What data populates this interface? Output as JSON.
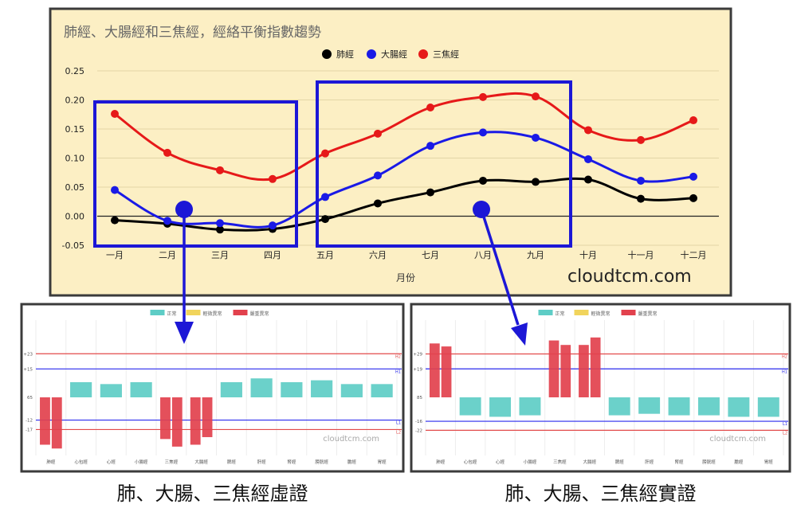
{
  "watermark": "cloudtcm.com",
  "captions": {
    "left": "肺、大腸、三焦經虛證",
    "right": "肺、大腸、三焦經實證"
  },
  "colors": {
    "main_bg": "#fcefc4",
    "frame": "#3b3b3b",
    "callout": "#1c17d6",
    "normal": "#5ecdc6",
    "mild": "#f1d45c",
    "severe": "#e2414d",
    "red_line": "#e24a4a",
    "blue_line": "#2a2aee"
  },
  "chart_data": [
    {
      "type": "line",
      "title": "肺經、大腸經和三焦經，經絡平衡指數趨勢",
      "xlabel": "月份",
      "ylabel": "",
      "categories": [
        "一月",
        "二月",
        "三月",
        "四月",
        "五月",
        "六月",
        "七月",
        "八月",
        "九月",
        "十月",
        "十一月",
        "十二月"
      ],
      "ylim": [
        -0.05,
        0.25
      ],
      "yticks": [
        "0.25",
        "0.20",
        "0.15",
        "0.10",
        "0.05",
        "0.00",
        "-0.05"
      ],
      "legend_position": "top-center",
      "series": [
        {
          "name": "肺經",
          "color": "#000000",
          "values": [
            -0.007,
            -0.013,
            -0.023,
            -0.022,
            -0.005,
            0.022,
            0.041,
            0.061,
            0.059,
            0.063,
            0.03,
            0.031
          ]
        },
        {
          "name": "大腸經",
          "color": "#1a1ae6",
          "values": [
            0.045,
            -0.008,
            -0.012,
            -0.016,
            0.033,
            0.07,
            0.121,
            0.144,
            0.135,
            0.098,
            0.061,
            0.068
          ]
        },
        {
          "name": "三焦經",
          "color": "#e61919",
          "values": [
            0.176,
            0.109,
            0.079,
            0.064,
            0.108,
            0.142,
            0.187,
            0.205,
            0.206,
            0.148,
            0.131,
            0.165
          ]
        }
      ]
    },
    {
      "type": "bar",
      "legend": [
        "正常",
        "輕微異常",
        "嚴重異常"
      ],
      "categories": [
        "肺經",
        "心包經",
        "心經",
        "小腸經",
        "三焦經",
        "大腸經",
        "脾經",
        "肝經",
        "腎經",
        "膀胱經",
        "膽經",
        "胃經"
      ],
      "baseline_label": "65",
      "ref_lines": [
        {
          "label": "+23",
          "tag": "H2",
          "value": 23,
          "color": "red"
        },
        {
          "label": "+15",
          "tag": "H1",
          "value": 15,
          "color": "blue"
        },
        {
          "label": "-12",
          "tag": "L1",
          "value": -12,
          "color": "blue"
        },
        {
          "label": "-17",
          "tag": "L2",
          "value": -17,
          "color": "red"
        }
      ],
      "ylim": [
        -42,
        45
      ],
      "bars": [
        [
          -25,
          -27
        ],
        [
          8,
          8
        ],
        [
          7,
          7
        ],
        [
          8,
          8
        ],
        [
          -22,
          -26
        ],
        [
          -25,
          -21
        ],
        [
          8,
          8
        ],
        [
          10,
          10
        ],
        [
          8,
          8
        ],
        [
          9,
          9
        ],
        [
          7,
          7
        ],
        [
          7,
          7
        ]
      ],
      "bar_status": [
        "severe",
        "normal",
        "normal",
        "normal",
        "severe",
        "severe",
        "normal",
        "normal",
        "normal",
        "normal",
        "normal",
        "normal"
      ]
    },
    {
      "type": "bar",
      "legend": [
        "正常",
        "輕微異常",
        "嚴重異常"
      ],
      "categories": [
        "肺經",
        "心包經",
        "心經",
        "小腸經",
        "三焦經",
        "大腸經",
        "脾經",
        "肝經",
        "腎經",
        "膀胱經",
        "膽經",
        "胃經"
      ],
      "baseline_label": "85",
      "ref_lines": [
        {
          "label": "+29",
          "tag": "H2",
          "value": 29,
          "color": "red"
        },
        {
          "label": "+19",
          "tag": "H1",
          "value": 19,
          "color": "blue"
        },
        {
          "label": "-16",
          "tag": "L1",
          "value": -16,
          "color": "blue"
        },
        {
          "label": "-22",
          "tag": "L2",
          "value": -22,
          "color": "red"
        }
      ],
      "ylim": [
        -48,
        45
      ],
      "bars": [
        [
          36,
          34
        ],
        [
          -12,
          -12
        ],
        [
          -13,
          -13
        ],
        [
          -12,
          -12
        ],
        [
          38,
          35
        ],
        [
          35,
          40
        ],
        [
          -12,
          -12
        ],
        [
          -11,
          -11
        ],
        [
          -12,
          -12
        ],
        [
          -12,
          -12
        ],
        [
          -13,
          -13
        ],
        [
          -13,
          -13
        ]
      ],
      "bar_status": [
        "severe",
        "normal",
        "normal",
        "normal",
        "severe",
        "severe",
        "normal",
        "normal",
        "normal",
        "normal",
        "normal",
        "normal"
      ]
    }
  ]
}
